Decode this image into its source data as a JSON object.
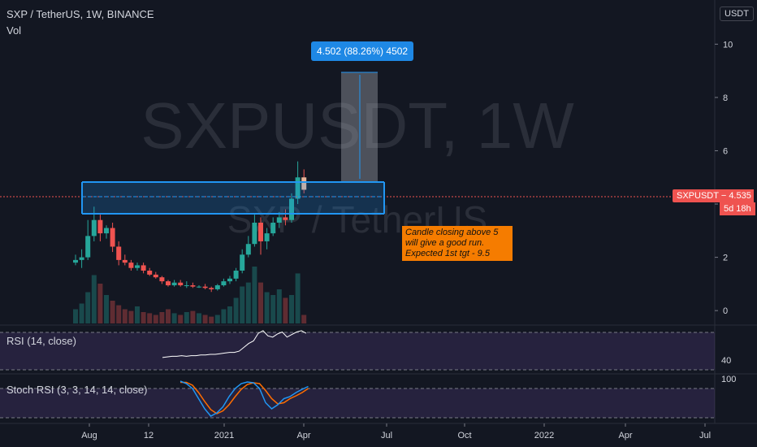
{
  "header": {
    "title": "SXP / TetherUS, 1W, BINANCE",
    "vol_label": "Vol"
  },
  "watermark": {
    "symbol": "SXPUSDT, 1W",
    "name": "SXP / TetherUS"
  },
  "price_axis": {
    "currency": "USDT",
    "ticks": [
      0,
      2,
      4,
      6,
      8,
      10
    ]
  },
  "price_tag": {
    "symbol": "SXPUSDT",
    "value": "4.535",
    "time_left": "5d 18h",
    "color": "#ef5350"
  },
  "measure": {
    "label": "4.502 (88.26%) 4502",
    "from": 5.1,
    "to": 9.6
  },
  "zone": {
    "top": 5.2,
    "bottom": 3.7,
    "mid": 4.5,
    "color": "#2196f3"
  },
  "annotation": {
    "lines": [
      "Candle closing above 5",
      "will give a good run.",
      "Expected 1st tgt - 9.5"
    ],
    "color": "#f57c00"
  },
  "time_axis": {
    "labels": [
      "Aug",
      "12",
      "2021",
      "Apr",
      "Jul",
      "Oct",
      "2022",
      "Apr",
      "Jul"
    ]
  },
  "rsi": {
    "label": "RSI (14, close)",
    "tick": "40",
    "line_color": "#ffffff"
  },
  "stoch": {
    "label": "Stoch RSI (3, 3, 14, 14, close)",
    "tick": "100",
    "k_color": "#2196f3",
    "d_color": "#ff6d00"
  },
  "chart_data": {
    "type": "candlestick",
    "title": "SXP / TetherUS, 1W, BINANCE",
    "ylim": [
      -0.3,
      11.2
    ],
    "up_color": "#26a69a",
    "down_color": "#ef5350",
    "candles": [
      {
        "t": "2020-07-20",
        "o": 1.8,
        "h": 2.1,
        "l": 1.7,
        "c": 1.9
      },
      {
        "t": "2020-07-27",
        "o": 1.9,
        "h": 2.3,
        "l": 1.6,
        "c": 2.0
      },
      {
        "t": "2020-08-03",
        "o": 2.0,
        "h": 3.4,
        "l": 1.9,
        "c": 2.8
      },
      {
        "t": "2020-08-10",
        "o": 2.8,
        "h": 3.9,
        "l": 2.6,
        "c": 3.4
      },
      {
        "t": "2020-08-17",
        "o": 3.4,
        "h": 3.6,
        "l": 2.6,
        "c": 2.9
      },
      {
        "t": "2020-08-24",
        "o": 2.9,
        "h": 3.2,
        "l": 2.7,
        "c": 3.1
      },
      {
        "t": "2020-08-31",
        "o": 3.1,
        "h": 3.3,
        "l": 2.2,
        "c": 2.4
      },
      {
        "t": "2020-09-07",
        "o": 2.4,
        "h": 2.6,
        "l": 1.7,
        "c": 1.9
      },
      {
        "t": "2020-09-14",
        "o": 1.9,
        "h": 2.1,
        "l": 1.7,
        "c": 1.8
      },
      {
        "t": "2020-09-21",
        "o": 1.8,
        "h": 1.9,
        "l": 1.5,
        "c": 1.6
      },
      {
        "t": "2020-09-28",
        "o": 1.6,
        "h": 1.8,
        "l": 1.5,
        "c": 1.7
      },
      {
        "t": "2020-10-05",
        "o": 1.7,
        "h": 1.8,
        "l": 1.4,
        "c": 1.5
      },
      {
        "t": "2020-10-12",
        "o": 1.5,
        "h": 1.6,
        "l": 1.3,
        "c": 1.35
      },
      {
        "t": "2020-10-19",
        "o": 1.35,
        "h": 1.45,
        "l": 1.2,
        "c": 1.25
      },
      {
        "t": "2020-10-26",
        "o": 1.25,
        "h": 1.3,
        "l": 1.0,
        "c": 1.1
      },
      {
        "t": "2020-11-02",
        "o": 1.1,
        "h": 1.15,
        "l": 0.9,
        "c": 0.95
      },
      {
        "t": "2020-11-09",
        "o": 0.95,
        "h": 1.15,
        "l": 0.9,
        "c": 1.05
      },
      {
        "t": "2020-11-16",
        "o": 1.05,
        "h": 1.15,
        "l": 0.9,
        "c": 0.95
      },
      {
        "t": "2020-11-23",
        "o": 0.95,
        "h": 1.1,
        "l": 0.85,
        "c": 0.95
      },
      {
        "t": "2020-11-30",
        "o": 0.95,
        "h": 1.05,
        "l": 0.85,
        "c": 0.9
      },
      {
        "t": "2020-12-07",
        "o": 0.9,
        "h": 0.95,
        "l": 0.85,
        "c": 0.9
      },
      {
        "t": "2020-12-14",
        "o": 0.9,
        "h": 1.0,
        "l": 0.8,
        "c": 0.85
      },
      {
        "t": "2020-12-21",
        "o": 0.85,
        "h": 0.9,
        "l": 0.7,
        "c": 0.8
      },
      {
        "t": "2020-12-28",
        "o": 0.8,
        "h": 1.0,
        "l": 0.75,
        "c": 0.95
      },
      {
        "t": "2021-01-04",
        "o": 0.95,
        "h": 1.2,
        "l": 0.9,
        "c": 1.1
      },
      {
        "t": "2021-01-11",
        "o": 1.1,
        "h": 1.3,
        "l": 1.0,
        "c": 1.2
      },
      {
        "t": "2021-01-18",
        "o": 1.2,
        "h": 1.6,
        "l": 1.1,
        "c": 1.5
      },
      {
        "t": "2021-01-25",
        "o": 1.5,
        "h": 2.3,
        "l": 1.4,
        "c": 2.1
      },
      {
        "t": "2021-02-01",
        "o": 2.1,
        "h": 2.8,
        "l": 2.0,
        "c": 2.5
      },
      {
        "t": "2021-02-08",
        "o": 2.5,
        "h": 3.6,
        "l": 2.4,
        "c": 3.3
      },
      {
        "t": "2021-02-15",
        "o": 3.3,
        "h": 3.5,
        "l": 2.1,
        "c": 2.6
      },
      {
        "t": "2021-02-22",
        "o": 2.6,
        "h": 3.1,
        "l": 2.3,
        "c": 2.9
      },
      {
        "t": "2021-03-01",
        "o": 2.9,
        "h": 3.5,
        "l": 2.8,
        "c": 3.3
      },
      {
        "t": "2021-03-08",
        "o": 3.3,
        "h": 3.7,
        "l": 3.1,
        "c": 3.5
      },
      {
        "t": "2021-03-15",
        "o": 3.5,
        "h": 3.8,
        "l": 3.2,
        "c": 3.4
      },
      {
        "t": "2021-03-22",
        "o": 3.4,
        "h": 4.4,
        "l": 3.3,
        "c": 4.2
      },
      {
        "t": "2021-03-29",
        "o": 4.2,
        "h": 5.6,
        "l": 4.0,
        "c": 5.0
      },
      {
        "t": "2021-04-05",
        "o": 5.0,
        "h": 5.3,
        "l": 4.4,
        "c": 4.535
      }
    ],
    "volume": [
      0.25,
      0.35,
      0.55,
      0.85,
      0.7,
      0.5,
      0.4,
      0.32,
      0.25,
      0.22,
      0.3,
      0.2,
      0.18,
      0.15,
      0.2,
      0.25,
      0.18,
      0.15,
      0.2,
      0.22,
      0.18,
      0.15,
      0.12,
      0.15,
      0.25,
      0.3,
      0.45,
      0.65,
      0.72,
      1.0,
      0.72,
      0.55,
      0.5,
      0.6,
      0.45,
      0.5,
      0.88,
      0.15
    ],
    "rsi": [
      48,
      49,
      50,
      50,
      51,
      50,
      51,
      51,
      52,
      52,
      53,
      53,
      54,
      55,
      56,
      56,
      58,
      64,
      70,
      74,
      86,
      90,
      82,
      80,
      85,
      88,
      80,
      84,
      88,
      90,
      86
    ],
    "rsi_start_index": 7,
    "rsi_ylim": [
      25,
      95
    ],
    "stoch_k": [
      98,
      92,
      80,
      55,
      30,
      12,
      20,
      35,
      60,
      80,
      92,
      96,
      94,
      80,
      45,
      30,
      40,
      55,
      60,
      70,
      78,
      85
    ],
    "stoch_d": [
      95,
      95,
      88,
      70,
      48,
      28,
      18,
      25,
      40,
      60,
      78,
      90,
      94,
      92,
      75,
      55,
      42,
      45,
      55,
      62,
      70,
      80
    ],
    "stoch_start_index": 16,
    "stoch_ylim": [
      0,
      110
    ]
  }
}
